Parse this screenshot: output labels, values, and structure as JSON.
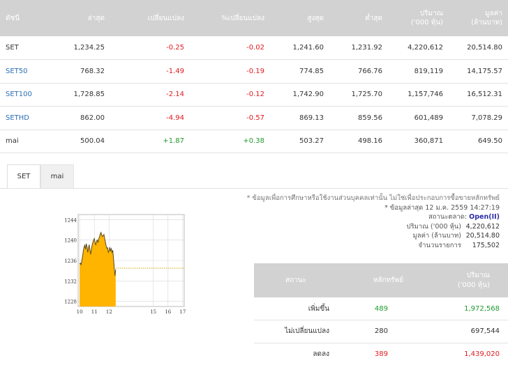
{
  "index_table": {
    "headers": [
      "ดัชนี",
      "ล่าสุด",
      "เปลี่ยนแปลง",
      "%เปลี่ยนแปลง",
      "สูงสุด",
      "ต่ำสุด",
      "ปริมาณ\n('000 หุ้น)",
      "มูลค่า\n(ล้านบาท)"
    ],
    "rows": [
      {
        "name": "SET",
        "last": "1,234.25",
        "change": "-0.25",
        "pct": "-0.02",
        "high": "1,241.60",
        "low": "1,231.92",
        "volume": "4,220,612",
        "value": "20,514.80",
        "dir": "neg",
        "link": false
      },
      {
        "name": "SET50",
        "last": "768.32",
        "change": "-1.49",
        "pct": "-0.19",
        "high": "774.85",
        "low": "766.76",
        "volume": "819,119",
        "value": "14,175.57",
        "dir": "neg",
        "link": true
      },
      {
        "name": "SET100",
        "last": "1,728.85",
        "change": "-2.14",
        "pct": "-0.12",
        "high": "1,742.90",
        "low": "1,725.70",
        "volume": "1,157,746",
        "value": "16,512.31",
        "dir": "neg",
        "link": true
      },
      {
        "name": "SETHD",
        "last": "862.00",
        "change": "-4.94",
        "pct": "-0.57",
        "high": "869.13",
        "low": "859.56",
        "volume": "601,489",
        "value": "7,078.29",
        "dir": "neg",
        "link": true
      },
      {
        "name": "mai",
        "last": "500.04",
        "change": "+1.87",
        "pct": "+0.38",
        "high": "503.27",
        "low": "498.16",
        "volume": "360,871",
        "value": "649.50",
        "dir": "pos",
        "link": false
      }
    ]
  },
  "tabs": [
    {
      "label": "SET",
      "active": true
    },
    {
      "label": "mai",
      "active": false
    }
  ],
  "info": {
    "disclaimer": "* ข้อมูลเพื่อการศึกษาหรือใช้งานส่วนบุคคลเท่านั้น ไม่ใช่เพื่อประกอบการซื้อขายหลักทรัพย์",
    "last_update_label": "* ข้อมูลล่าสุด",
    "last_update_value": "12 ม.ค. 2559 14:27:19",
    "market_status_label": "สถานะตลาด:",
    "market_status_value": "Open(II)",
    "volume_label": "ปริมาณ ('000 หุ้น)",
    "volume_value": "4,220,612",
    "value_label": "มูลค่า (ล้านบาท)",
    "value_value": "20,514.80",
    "trades_label": "จำนวนรายการ",
    "trades_value": "175,502"
  },
  "stock_table": {
    "headers": [
      "สถานะ",
      "หลักทรัพย์",
      "ปริมาณ\n('000 หุ้น)"
    ],
    "rows": [
      {
        "status": "เพิ่มขึ้น",
        "count": "489",
        "volume": "1,972,568",
        "dir": "pos"
      },
      {
        "status": "ไม่เปลี่ยนแปลง",
        "count": "280",
        "volume": "697,544",
        "dir": "none"
      },
      {
        "status": "ลดลง",
        "count": "389",
        "volume": "1,439,020",
        "dir": "neg"
      }
    ]
  },
  "chart_data": {
    "type": "area",
    "x_ticks": [
      "10",
      "11",
      "12",
      "15",
      "16",
      "17"
    ],
    "y_ticks": [
      "1228",
      "1232",
      "1236",
      "1240",
      "1244"
    ],
    "ylim": [
      1227,
      1245
    ],
    "xlim": [
      9.9,
      17.1
    ],
    "x": [
      10.0,
      10.05,
      10.1,
      10.15,
      10.2,
      10.25,
      10.3,
      10.35,
      10.4,
      10.45,
      10.5,
      10.55,
      10.6,
      10.65,
      10.7,
      10.75,
      10.8,
      10.85,
      10.9,
      10.95,
      11.0,
      11.05,
      11.1,
      11.15,
      11.2,
      11.25,
      11.3,
      11.35,
      11.4,
      11.45,
      11.5,
      11.55,
      11.6,
      11.65,
      11.7,
      11.75,
      11.8,
      11.85,
      11.9,
      11.95,
      12.0,
      12.05,
      12.1,
      12.15,
      12.2,
      12.25,
      12.3,
      12.35,
      12.4,
      12.45
    ],
    "y": [
      1235.3,
      1235.5,
      1235.2,
      1236.0,
      1236.8,
      1237.9,
      1238.6,
      1239.0,
      1238.2,
      1239.3,
      1238.7,
      1237.6,
      1238.5,
      1239.1,
      1238.0,
      1237.2,
      1238.3,
      1239.0,
      1239.6,
      1240.0,
      1240.3,
      1239.4,
      1239.1,
      1239.8,
      1240.0,
      1239.5,
      1240.3,
      1240.6,
      1241.2,
      1241.5,
      1241.0,
      1240.7,
      1240.9,
      1241.1,
      1240.3,
      1239.6,
      1238.9,
      1238.4,
      1238.5,
      1237.6,
      1237.9,
      1238.6,
      1237.9,
      1238.3,
      1237.6,
      1238.0,
      1236.4,
      1234.6,
      1233.0,
      1234.25
    ],
    "reference_line": 1234.5,
    "colors": {
      "fill": "#ffb400",
      "line": "#5a4a1a",
      "reference": "#d4a000",
      "grid": "#d8d8d8"
    }
  },
  "colors": {
    "header_bg": "#d2d2d2",
    "link": "#2c6db5",
    "negative": "#e0191f",
    "positive": "#1e9a2c"
  }
}
